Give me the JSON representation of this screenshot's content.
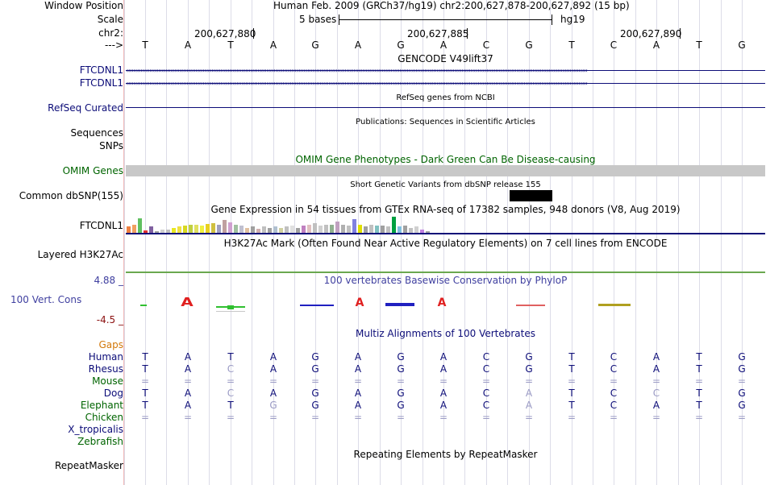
{
  "colors": {
    "navy": "#0c0c78",
    "darkgreen": "#006400",
    "conservation": "#4040a0",
    "gaps": "#d2780a",
    "negative": "#8b1010",
    "gray_bar": "#c8c8c8",
    "light": "#9a9ac4",
    "h3k27ac": "#6aa84f"
  },
  "header": {
    "window_position_label": "Window Position",
    "window_position_value": "Human Feb. 2009 (GRCh37/hg19)   chr2:200,627,878-200,627,892 (15 bp)",
    "scale_label": "Scale",
    "scale_bases": "5 bases",
    "scale_assembly": "hg19",
    "chr_label": "chr2:",
    "coords": [
      "200,627,880",
      "200,627,885",
      "200,627,890"
    ],
    "strand_label": "--->"
  },
  "bases": [
    "T",
    "A",
    "T",
    "A",
    "G",
    "A",
    "G",
    "A",
    "C",
    "G",
    "T",
    "C",
    "A",
    "T",
    "G"
  ],
  "tracks": {
    "gencode": {
      "title": "GENCODE V49lift37",
      "genes": [
        "FTCDNL1",
        "FTCDNL1"
      ]
    },
    "refseq": {
      "title": "RefSeq genes from NCBI",
      "label": "RefSeq Curated"
    },
    "publications": {
      "title": "Publications: Sequences in Scientific Articles",
      "label": "Sequences"
    },
    "snps": {
      "label": "SNPs"
    },
    "omim": {
      "title": "OMIM Gene Phenotypes - Dark Green Can Be Disease-causing",
      "label": "OMIM Genes"
    },
    "dbsnp": {
      "title": "Short Genetic Variants from dbSNP release 155",
      "label": "Common dbSNP(155)"
    },
    "gtex": {
      "title": "Gene Expression in 54 tissues from GTEx RNA-seq of 17382 samples, 948 donors (V8, Aug 2019)",
      "label": "FTCDNL1"
    },
    "h3k27ac": {
      "title": "H3K27Ac Mark (Often Found Near Active Regulatory Elements) on 7 cell lines from ENCODE",
      "label": "Layered H3K27Ac"
    },
    "conservation": {
      "title": "100 vertebrates Basewise Conservation by PhyloP",
      "label": "100 Vert. Cons",
      "ymax": "4.88 _",
      "ymin": "-4.5 _"
    },
    "multiz": {
      "title": "Multiz Alignments of 100 Vertebrates",
      "gaps_label": "Gaps"
    },
    "repeatmasker": {
      "title": "Repeating Elements by RepeatMasker",
      "label": "RepeatMasker"
    }
  },
  "species": [
    {
      "name": "Human",
      "seq": [
        "T",
        "A",
        "T",
        "A",
        "G",
        "A",
        "G",
        "A",
        "C",
        "G",
        "T",
        "C",
        "A",
        "T",
        "G"
      ]
    },
    {
      "name": "Rhesus",
      "seq": [
        "T",
        "A",
        "C",
        "A",
        "G",
        "A",
        "G",
        "A",
        "C",
        "G",
        "T",
        "C",
        "A",
        "T",
        "G"
      ]
    },
    {
      "name": "Mouse",
      "seq": [
        "=",
        "=",
        "=",
        "=",
        "=",
        "=",
        "=",
        "=",
        "=",
        "=",
        "=",
        "=",
        "=",
        "=",
        "="
      ]
    },
    {
      "name": "Dog",
      "seq": [
        "T",
        "A",
        "C",
        "A",
        "G",
        "A",
        "G",
        "A",
        "C",
        "A",
        "T",
        "C",
        "C",
        "T",
        "G"
      ]
    },
    {
      "name": "Elephant",
      "seq": [
        "T",
        "A",
        "T",
        "G",
        "G",
        "A",
        "G",
        "A",
        "C",
        "A",
        "T",
        "C",
        "A",
        "T",
        "G"
      ]
    },
    {
      "name": "Chicken",
      "seq": [
        "=",
        "=",
        "=",
        "=",
        "=",
        "=",
        "=",
        "=",
        "=",
        "=",
        "=",
        "=",
        "=",
        "=",
        "="
      ]
    },
    {
      "name": "X_tropicalis",
      "seq": []
    },
    {
      "name": "Zebrafish",
      "seq": []
    }
  ]
}
